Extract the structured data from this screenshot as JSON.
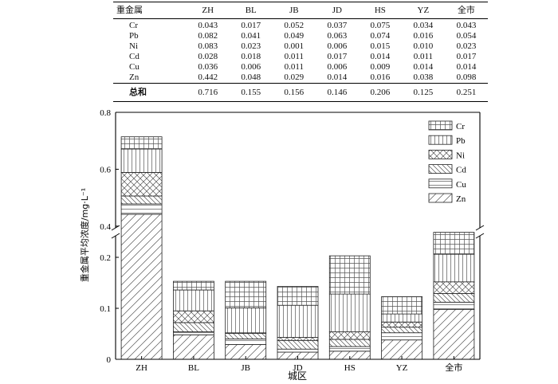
{
  "table": {
    "corner": "重金属",
    "columns": [
      "ZH",
      "BL",
      "JB",
      "JD",
      "HS",
      "YZ",
      "全市"
    ],
    "rows": [
      {
        "label": "Cr",
        "values": [
          "0.043",
          "0.017",
          "0.052",
          "0.037",
          "0.075",
          "0.034",
          "0.043"
        ]
      },
      {
        "label": "Pb",
        "values": [
          "0.082",
          "0.041",
          "0.049",
          "0.063",
          "0.074",
          "0.016",
          "0.054"
        ]
      },
      {
        "label": "Ni",
        "values": [
          "0.083",
          "0.023",
          "0.001",
          "0.006",
          "0.015",
          "0.010",
          "0.023"
        ]
      },
      {
        "label": "Cd",
        "values": [
          "0.028",
          "0.018",
          "0.011",
          "0.017",
          "0.014",
          "0.011",
          "0.017"
        ]
      },
      {
        "label": "Cu",
        "values": [
          "0.036",
          "0.006",
          "0.011",
          "0.006",
          "0.009",
          "0.014",
          "0.014"
        ]
      },
      {
        "label": "Zn",
        "values": [
          "0.442",
          "0.048",
          "0.029",
          "0.014",
          "0.016",
          "0.038",
          "0.098"
        ]
      }
    ],
    "total": {
      "label": "总和",
      "values": [
        "0.716",
        "0.155",
        "0.156",
        "0.146",
        "0.206",
        "0.125",
        "0.251"
      ]
    }
  },
  "chart_data": {
    "type": "bar",
    "stacked": true,
    "categories": [
      "ZH",
      "BL",
      "JB",
      "JD",
      "HS",
      "YZ",
      "全市"
    ],
    "series": [
      {
        "name": "Zn",
        "values": [
          0.442,
          0.048,
          0.029,
          0.014,
          0.016,
          0.038,
          0.098
        ]
      },
      {
        "name": "Cu",
        "values": [
          0.036,
          0.006,
          0.011,
          0.006,
          0.009,
          0.014,
          0.014
        ]
      },
      {
        "name": "Cd",
        "values": [
          0.028,
          0.018,
          0.011,
          0.017,
          0.014,
          0.011,
          0.017
        ]
      },
      {
        "name": "Ni",
        "values": [
          0.083,
          0.023,
          0.001,
          0.006,
          0.015,
          0.01,
          0.023
        ]
      },
      {
        "name": "Pb",
        "values": [
          0.082,
          0.041,
          0.049,
          0.063,
          0.074,
          0.016,
          0.054
        ]
      },
      {
        "name": "Cr",
        "values": [
          0.043,
          0.017,
          0.052,
          0.037,
          0.075,
          0.034,
          0.043
        ]
      }
    ],
    "xlabel": "城区",
    "ylabel": "重金属平均浓度/mg·L⁻¹",
    "ylim": [
      0,
      0.8
    ],
    "axis_break": [
      0.25,
      0.38
    ],
    "yticks_lower": [
      "0",
      "0.1",
      "0.2"
    ],
    "yticks_upper": [
      "0.4",
      "0.6",
      "0.8"
    ],
    "legend_order": [
      "Cr",
      "Pb",
      "Ni",
      "Cd",
      "Cu",
      "Zn"
    ],
    "legend_position": "top-right",
    "grid": false,
    "patterns": {
      "Cr": "grid",
      "Pb": "vertical-lines",
      "Ni": "cross-hatch",
      "Cd": "diagonal-backslash",
      "Cu": "horizontal-lines",
      "Zn": "diagonal-slash"
    }
  }
}
